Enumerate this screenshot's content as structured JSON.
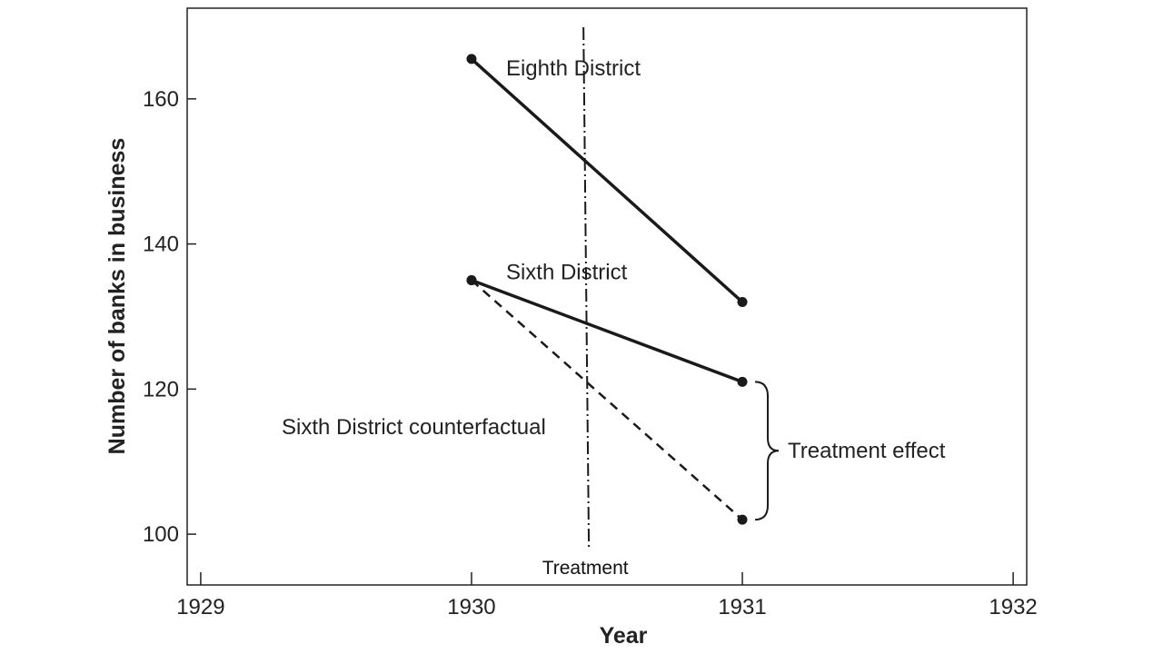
{
  "chart_data": {
    "type": "line",
    "xlabel": "Year",
    "ylabel": "Number of banks in business",
    "x_ticks": [
      1929,
      1930,
      1931,
      1932
    ],
    "y_ticks": [
      100,
      120,
      140,
      160
    ],
    "xlim": [
      1928.95,
      1932.05
    ],
    "ylim": [
      93,
      172.5
    ],
    "grid": false,
    "series": [
      {
        "name": "Eighth District",
        "style": "solid",
        "x": [
          1930,
          1931
        ],
        "y": [
          165.5,
          132
        ]
      },
      {
        "name": "Sixth District",
        "style": "solid",
        "x": [
          1930,
          1931
        ],
        "y": [
          135,
          121
        ]
      },
      {
        "name": "Sixth District counterfactual",
        "style": "dashed",
        "x": [
          1930,
          1931
        ],
        "y": [
          135,
          102
        ]
      }
    ],
    "treatment_line": {
      "x": 1930.42,
      "label": "Treatment",
      "style": "dash-dot"
    },
    "bracket_annotation": {
      "label": "Treatment effect",
      "x": 1931,
      "y_from": 121,
      "y_to": 102
    },
    "colors": {
      "line": "#1a1a1a",
      "text": "#222222"
    }
  }
}
